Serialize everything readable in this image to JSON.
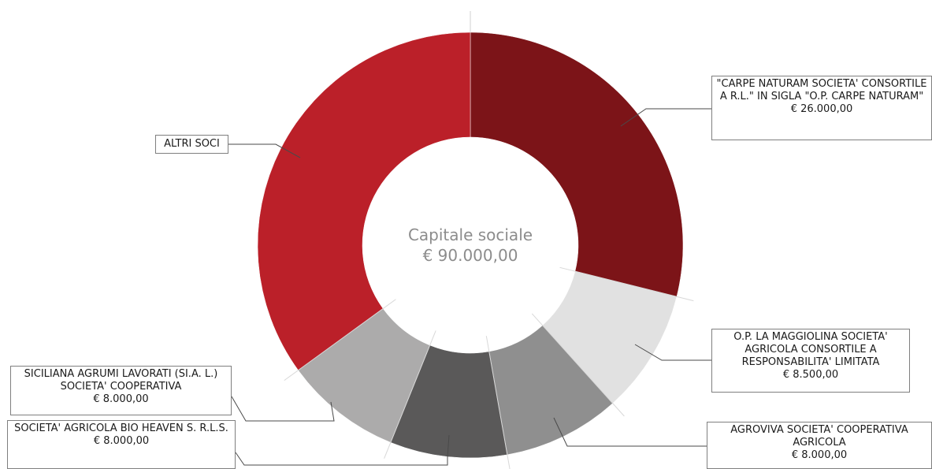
{
  "chart_data": {
    "type": "pie",
    "title": "Capitale sociale",
    "total_label": "€ 90.000,00",
    "slices": [
      {
        "name": "\"CARPE NATURAM SOCIETA' CONSORTILE A R.L.\" IN SIGLA \"O.P. CARPE NATURAM\"",
        "value": 26000,
        "value_label": "€ 26.000,00",
        "color": "#7c1418"
      },
      {
        "name": "O.P. LA MAGGIOLINA SOCIETA' AGRICOLA CONSORTILE A RESPONSABILITA' LIMITATA",
        "value": 8500,
        "value_label": "€ 8.500,00",
        "color": "#e1e1e1"
      },
      {
        "name": "AGROVIVA SOCIETA' COOPERATIVA AGRICOLA",
        "value": 8000,
        "value_label": "€ 8.000,00",
        "color": "#8f8f8f"
      },
      {
        "name": "SOCIETA' AGRICOLA BIO HEAVEN S. R.L.S.",
        "value": 8000,
        "value_label": "€ 8.000,00",
        "color": "#5a5959"
      },
      {
        "name": "SICILIANA AGRUMI LAVORATI (SI.A. L.) SOCIETA' COOPERATIVA",
        "value": 8000,
        "value_label": "€ 8.000,00",
        "color": "#acabab"
      },
      {
        "name": "ALTRI SOCI",
        "value": 31500,
        "value_label": "",
        "color": "#bb2029"
      }
    ]
  }
}
